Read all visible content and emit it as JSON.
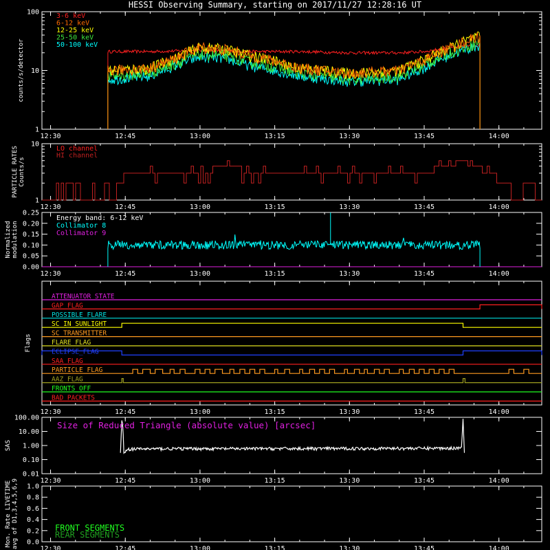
{
  "title": "HESSI Observing Summary, starting on 2017/11/27 12:28:16 UT",
  "colors": {
    "bg": "#000000",
    "axis": "#ffffff",
    "red": "#ff2020",
    "orange_red": "#ff6a00",
    "yellow": "#ffff00",
    "green": "#3ee83e",
    "cyan": "#00ffff",
    "magenta": "#e020e0",
    "orange": "#ff9a20",
    "blue": "#2040ff",
    "olive": "#a0a020",
    "darkred": "#c02020",
    "brightgreen": "#20ff20",
    "darkgreen": "#20a020"
  },
  "time_axis": {
    "tick_labels": [
      "12:30",
      "12:45",
      "13:00",
      "13:15",
      "13:30",
      "13:45",
      "14:00"
    ],
    "tick_minutes": [
      30,
      45,
      60,
      75,
      90,
      105,
      120
    ],
    "range_minutes": [
      28.27,
      128.6
    ]
  },
  "chart_data": [
    {
      "type": "line",
      "panel": "count_rates",
      "ylabel": "counts/s/detector",
      "yscale": "log",
      "ylim": [
        1,
        100
      ],
      "ytick_labels": [
        "1",
        "10",
        "100"
      ],
      "ytick_values": [
        1,
        10,
        100
      ],
      "data_window_minutes": [
        41.5,
        116.2
      ],
      "series": [
        {
          "name": "3-6 keV",
          "color": "#ff2020",
          "x": [
            41.5,
            50,
            60,
            70,
            80,
            90,
            100,
            105,
            110,
            116
          ],
          "y": [
            21,
            21,
            22,
            21,
            21,
            20,
            20,
            21,
            24,
            27
          ]
        },
        {
          "name": "6-12 keV",
          "color": "#ff6a00",
          "x": [
            41.5,
            50,
            55,
            60,
            65,
            70,
            80,
            90,
            100,
            105,
            110,
            116
          ],
          "y": [
            10,
            11,
            16,
            25,
            23,
            18,
            11,
            9,
            10,
            15,
            24,
            38
          ]
        },
        {
          "name": "12-25 keV",
          "color": "#ffff00",
          "x": [
            41.5,
            50,
            55,
            60,
            65,
            70,
            80,
            90,
            100,
            105,
            110,
            116
          ],
          "y": [
            10,
            11,
            16,
            25,
            23,
            18,
            11,
            9,
            10,
            15,
            24,
            38
          ]
        },
        {
          "name": "25-50 keV",
          "color": "#3ee83e",
          "x": [
            41.5,
            50,
            55,
            60,
            65,
            70,
            80,
            90,
            100,
            105,
            110,
            116
          ],
          "y": [
            8,
            9,
            13,
            19,
            18,
            14,
            9,
            7,
            8,
            12,
            20,
            30
          ]
        },
        {
          "name": "50-100 keV",
          "color": "#00ffff",
          "x": [
            41.5,
            50,
            55,
            60,
            65,
            70,
            80,
            90,
            100,
            105,
            110,
            116
          ],
          "y": [
            7,
            8,
            12,
            17,
            16,
            12,
            8,
            6.5,
            7,
            11,
            18,
            27
          ]
        }
      ]
    },
    {
      "type": "line",
      "panel": "particle_rates",
      "ylabel_lines": [
        "PARTICLE RATES",
        "Counts/s"
      ],
      "yscale": "log",
      "ylim": [
        1,
        10
      ],
      "ytick_labels": [
        "1",
        "10"
      ],
      "ytick_values": [
        1,
        10
      ],
      "series": [
        {
          "name": "LO channel",
          "color": "#ff2020",
          "x": [],
          "y": []
        },
        {
          "name": "HI channel",
          "color": "#c02020",
          "x": [
            28.3,
            30,
            31,
            33,
            34,
            35,
            36,
            42,
            44,
            45,
            46,
            48,
            52,
            58,
            60,
            65,
            70,
            75,
            80,
            90,
            95,
            100,
            104,
            106,
            108,
            110,
            112,
            115,
            118,
            121,
            123,
            126,
            128
          ],
          "y": [
            2,
            1,
            2,
            1,
            2,
            1,
            1,
            1,
            2,
            3,
            3,
            3,
            3,
            3,
            3,
            4,
            3,
            3,
            3,
            3,
            3,
            3,
            3,
            3,
            4,
            4,
            5,
            4,
            3,
            2,
            1,
            2,
            1
          ]
        }
      ]
    },
    {
      "type": "line",
      "panel": "modulation",
      "ylabel_lines": [
        "Normalized",
        "modulation"
      ],
      "ylim": [
        0,
        0.25
      ],
      "ytick_labels": [
        "0.00",
        "0.05",
        "0.10",
        "0.15",
        "0.20",
        "0.25"
      ],
      "ytick_values": [
        0,
        0.05,
        0.1,
        0.15,
        0.2,
        0.25
      ],
      "annotations": [
        "Energy band: 6-12 keV"
      ],
      "data_window_minutes": [
        41.5,
        116.2
      ],
      "spike": {
        "x": 86.2,
        "y": 0.25
      },
      "series": [
        {
          "name": "Collimator 8",
          "color": "#00ffff",
          "mean": 0.1,
          "spread": 0.02
        },
        {
          "name": "Collimator 9",
          "color": "#e020e0",
          "mean": 0.0
        }
      ]
    },
    {
      "type": "table",
      "panel": "flags",
      "ylabel": "Flags",
      "flags": [
        {
          "name": "ATTENUATOR_STATE",
          "color": "#e020e0",
          "intervals": []
        },
        {
          "name": "GAP_FLAG",
          "color": "#ff2020",
          "intervals": [
            [
              116.2,
              128.6
            ]
          ]
        },
        {
          "name": "POSSIBLE_FLARE",
          "color": "#00e0e0",
          "intervals": []
        },
        {
          "name": "SC_IN_SUNLIGHT",
          "color": "#ffff00",
          "intervals": [
            [
              44.3,
              112.8
            ]
          ]
        },
        {
          "name": "SC_TRANSMITTER",
          "color": "#ff9a20",
          "intervals": []
        },
        {
          "name": "FLARE_FLAG",
          "color": "#e0e020",
          "intervals": []
        },
        {
          "name": "ECLIPSE_FLAG",
          "color": "#2040ff",
          "intervals": [
            [
              28.27,
              44.3
            ],
            [
              112.8,
              128.6
            ]
          ]
        },
        {
          "name": "SAA_FLAG",
          "color": "#ff2020",
          "intervals": []
        },
        {
          "name": "PARTICLE_FLAG",
          "color": "#ff9a20",
          "intervals": [
            [
              46.5,
              47.5
            ],
            [
              48.5,
              50
            ],
            [
              51,
              52.5
            ],
            [
              54,
              54.8
            ],
            [
              56,
              57
            ],
            [
              59,
              60
            ],
            [
              61,
              62
            ],
            [
              63,
              64.5
            ],
            [
              66,
              66.8
            ],
            [
              68,
              69
            ],
            [
              70,
              71
            ],
            [
              72,
              73
            ],
            [
              75,
              75.6
            ],
            [
              77,
              78
            ],
            [
              80,
              80.6
            ],
            [
              82,
              83
            ],
            [
              84,
              85
            ],
            [
              86,
              87
            ],
            [
              89,
              89.6
            ],
            [
              91,
              92
            ],
            [
              93,
              93.6
            ],
            [
              95,
              96
            ],
            [
              97,
              98
            ],
            [
              100,
              100.8
            ],
            [
              102,
              103
            ],
            [
              104,
              105
            ],
            [
              106,
              107
            ],
            [
              108,
              109
            ],
            [
              110,
              111
            ],
            [
              122,
              123
            ],
            [
              125,
              126
            ]
          ]
        },
        {
          "name": "AAZ_FLAG",
          "color": "#a0a020",
          "intervals": [
            [
              44.3,
              44.6
            ],
            [
              112.8,
              113.2
            ]
          ]
        },
        {
          "name": "FRONTS_OFF",
          "color": "#20ff20",
          "intervals": []
        },
        {
          "name": "BAD_PACKETS",
          "color": "#ff2020",
          "intervals": []
        }
      ]
    },
    {
      "type": "line",
      "panel": "sas",
      "ylabel": "SAS",
      "yscale": "log",
      "ylim": [
        0.01,
        100
      ],
      "ytick_labels": [
        "100.00",
        "10.00",
        "1.00",
        "0.10",
        "0.01"
      ],
      "ytick_values": [
        100,
        10,
        1,
        0.1,
        0.01
      ],
      "annotations": [
        "Size of Reduced Triangle (absolute value) [arcsec]"
      ],
      "series": [
        {
          "name": "",
          "color": "#ffffff",
          "x": [
            44.3,
            44.6,
            45.5,
            48,
            55,
            70,
            90,
            110,
            112.6,
            112.8
          ],
          "y": [
            60,
            0.3,
            0.55,
            0.58,
            0.6,
            0.6,
            0.62,
            0.65,
            0.7,
            80
          ]
        }
      ]
    },
    {
      "type": "line",
      "panel": "livetime",
      "ylabel_lines": [
        "Mon. Rate LIVETIME",
        "avg of D1,3,4,5,6,9"
      ],
      "ylim": [
        0,
        1
      ],
      "ytick_labels": [
        "0.0",
        "0.2",
        "0.4",
        "0.6",
        "0.8",
        "1.0"
      ],
      "ytick_values": [
        0,
        0.2,
        0.4,
        0.6,
        0.8,
        1.0
      ],
      "series": [
        {
          "name": "FRONT SEGMENTS",
          "color": "#20ff20",
          "x": [],
          "y": []
        },
        {
          "name": "REAR SEGMENTS",
          "color": "#20a020",
          "x": [],
          "y": []
        }
      ]
    }
  ]
}
